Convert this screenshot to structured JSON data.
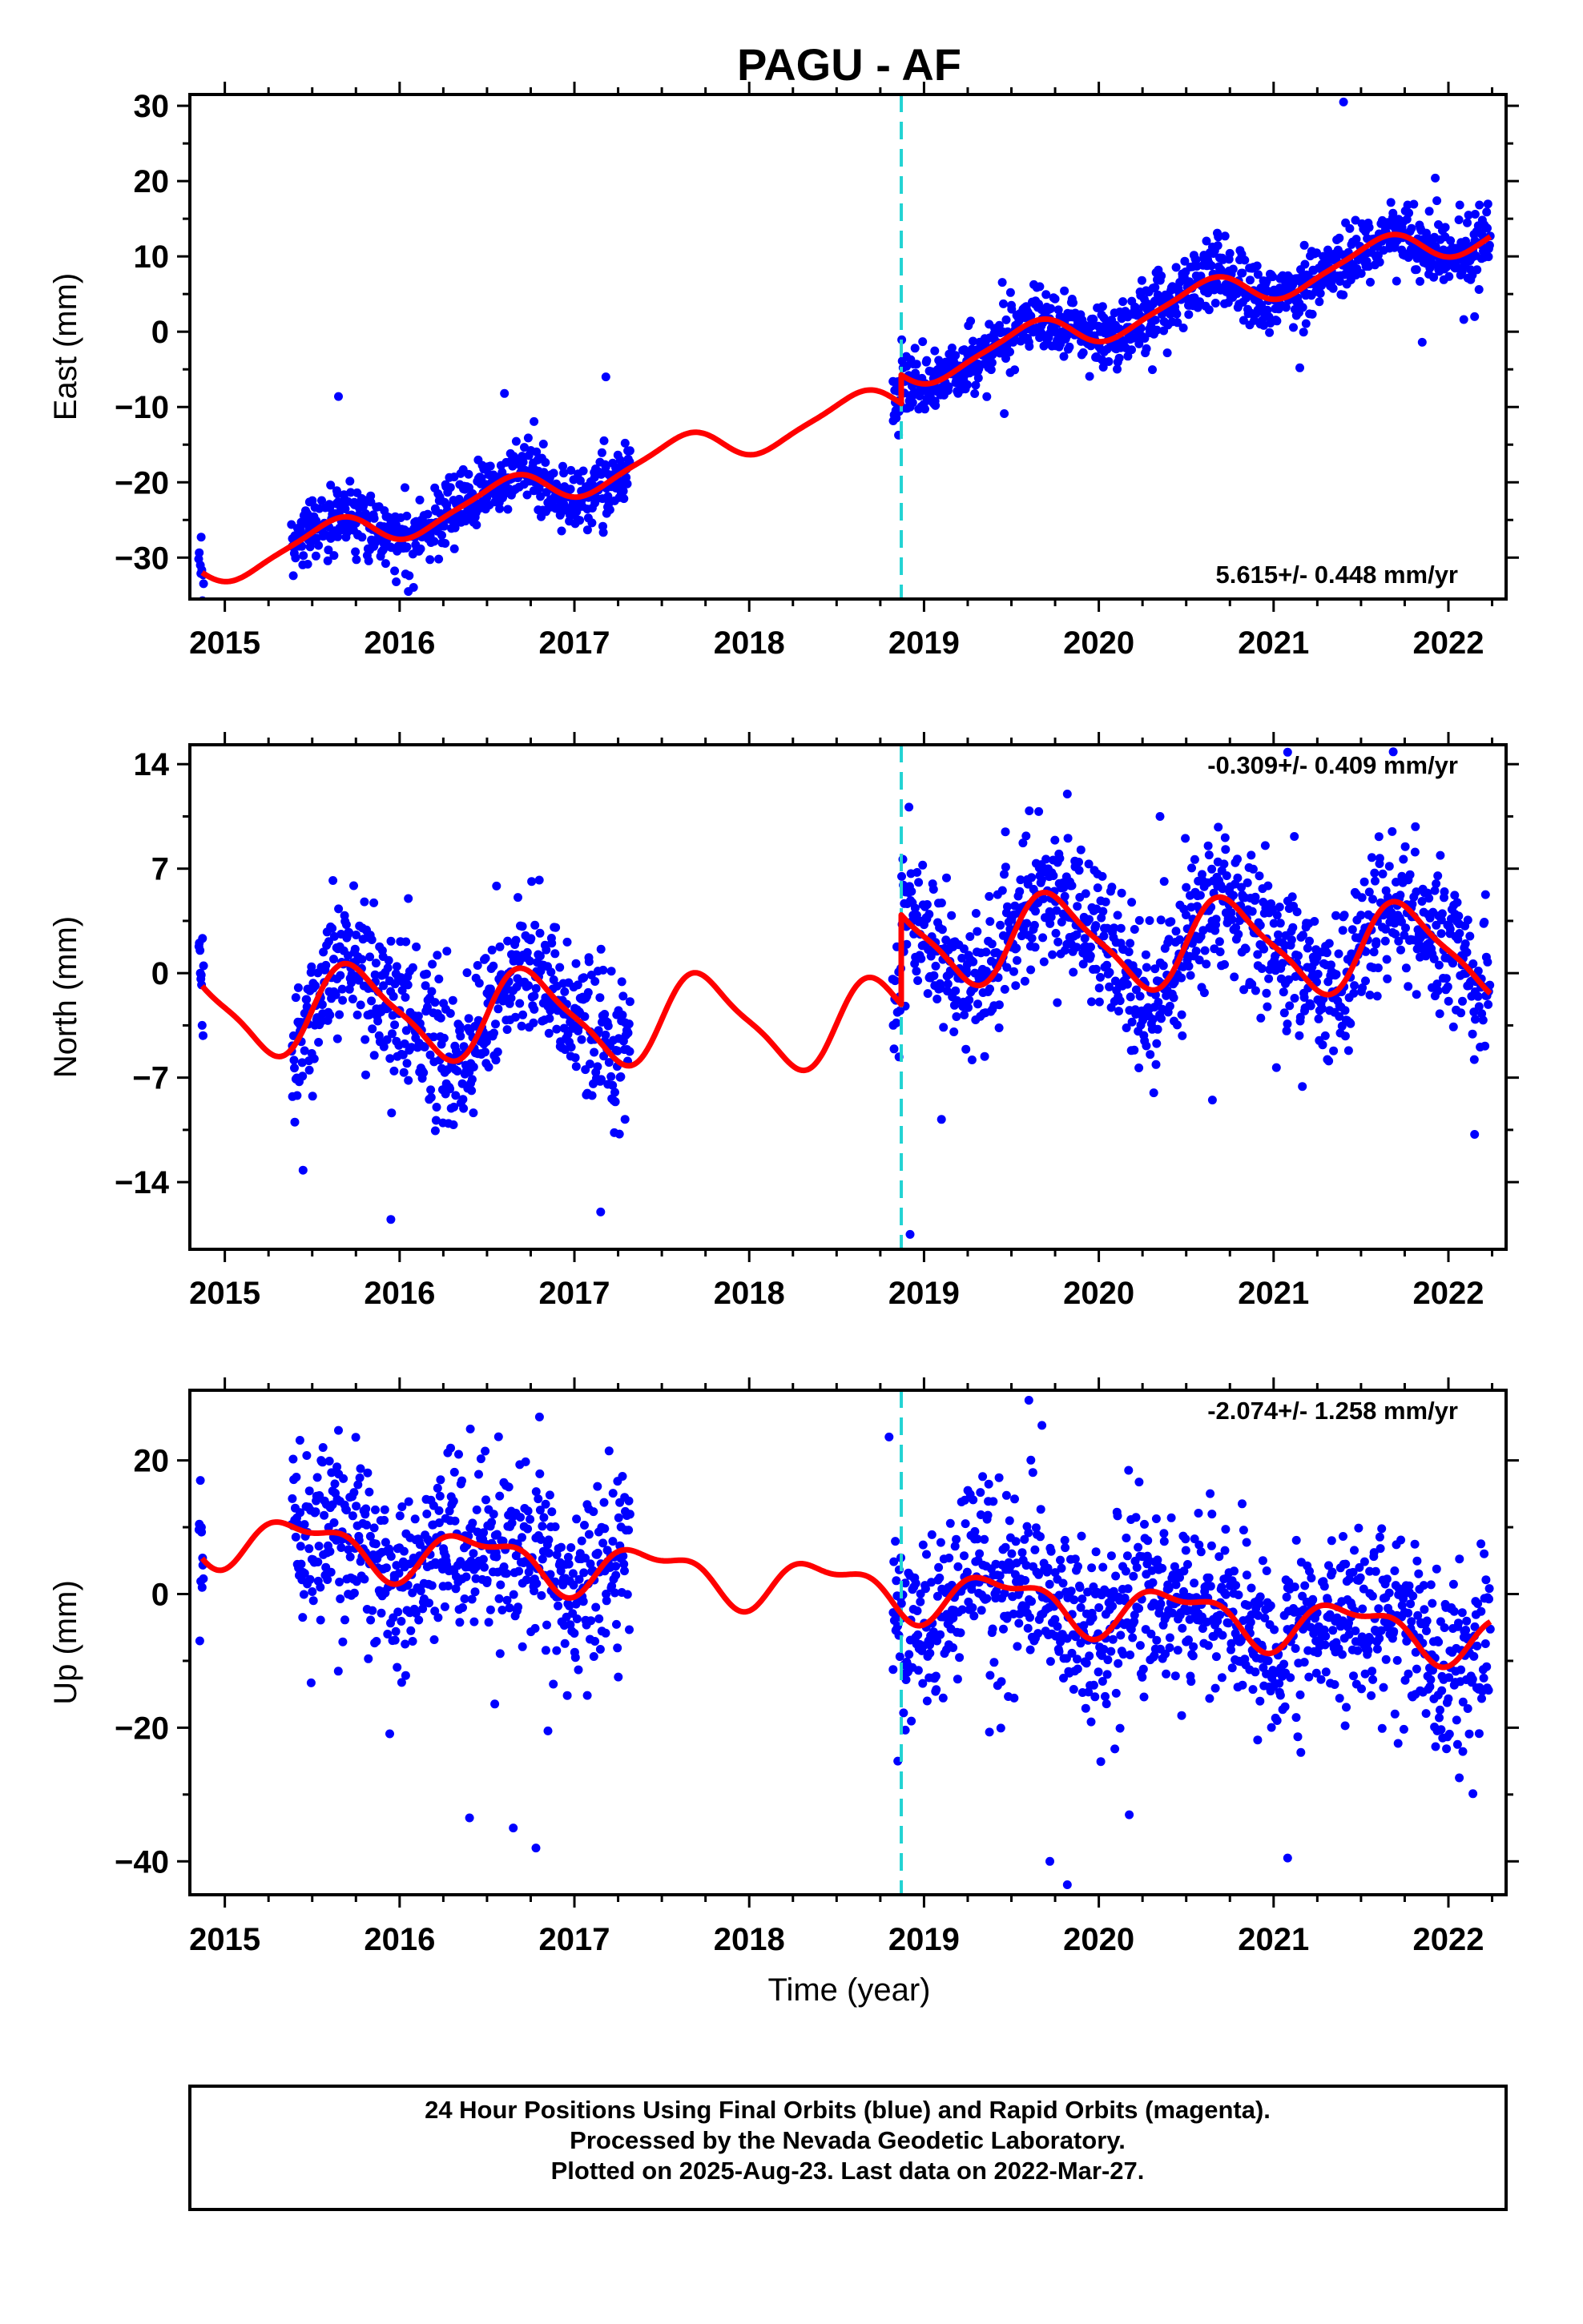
{
  "title": "PAGU - AF",
  "xlabel": "Time (year)",
  "footer": {
    "lines": [
      "24 Hour Positions Using Final Orbits (blue) and Rapid Orbits (magenta).",
      "Processed by the Nevada Geodetic Laboratory.",
      "Plotted on 2025-Aug-23. Last data on 2022-Mar-27."
    ]
  },
  "colors": {
    "points": "#0000ff",
    "model": "#ff0000",
    "step_line": "#22d3d3",
    "axis": "#000000"
  },
  "chart_data": [
    {
      "type": "scatter",
      "name": "east",
      "ylabel": "East (mm)",
      "rate_label": "5.615+/- 0.448 mm/yr",
      "rate_position": "bottom-right",
      "xlim": [
        2014.8,
        2022.33
      ],
      "ylim": [
        -35.5,
        31.5
      ],
      "x_ticks": [
        "2015",
        "2016",
        "2017",
        "2018",
        "2019",
        "2020",
        "2021",
        "2022"
      ],
      "y_ticks": [
        30,
        20,
        10,
        0,
        -10,
        -20,
        -30
      ],
      "step_epoch": 2018.87,
      "model": {
        "slope": 5.615,
        "ref_year": 2018.5,
        "offset": -11.2,
        "step": 3.8,
        "annual_amp": 2.3,
        "annual_phase_year": 0.35,
        "semiannual_amp": 0.5,
        "semiannual_phase_year": 0.1
      },
      "segments": [
        [
          2014.85,
          2014.88
        ],
        [
          2015.38,
          2017.32
        ],
        [
          2018.82,
          2022.24
        ]
      ],
      "noise_sd": 2.2,
      "points_per_year": 310,
      "outliers": [
        [
          2014.86,
          -31
        ],
        [
          2015.65,
          -8.6
        ],
        [
          2016.05,
          -34.5
        ],
        [
          2016.6,
          -8.2
        ],
        [
          2017.18,
          -6
        ],
        [
          2021.4,
          30.5
        ],
        [
          2021.15,
          -4.8
        ],
        [
          2021.85,
          -1.4
        ],
        [
          2022.15,
          2
        ]
      ]
    },
    {
      "type": "scatter",
      "name": "north",
      "ylabel": "North (mm)",
      "rate_label": "-0.309+/- 0.409 mm/yr",
      "rate_position": "top-right",
      "xlim": [
        2014.8,
        2022.33
      ],
      "ylim": [
        -18.5,
        15.3
      ],
      "x_ticks": [
        "2015",
        "2016",
        "2017",
        "2018",
        "2019",
        "2020",
        "2021",
        "2022"
      ],
      "y_ticks": [
        14,
        7,
        0,
        -7,
        -14
      ],
      "step_epoch": 2018.87,
      "model": {
        "slope": -0.309,
        "ref_year": 2018.5,
        "offset": -3.4,
        "step": 6.0,
        "annual_amp": 2.9,
        "annual_phase_year": 0.5,
        "semiannual_amp": 0.7,
        "semiannual_phase_year": 0.0
      },
      "segments": [
        [
          2014.85,
          2014.88
        ],
        [
          2015.38,
          2017.32
        ],
        [
          2018.82,
          2022.24
        ]
      ],
      "noise_sd": 2.4,
      "points_per_year": 300,
      "outliers": [
        [
          2014.86,
          0
        ],
        [
          2014.87,
          -3.5
        ],
        [
          2016.05,
          5
        ],
        [
          2015.95,
          -16.5
        ],
        [
          2017.15,
          -16
        ],
        [
          2018.92,
          -17.5
        ],
        [
          2019.82,
          12
        ],
        [
          2020.35,
          10.5
        ],
        [
          2021.08,
          14.8
        ],
        [
          2022.15,
          -10.8
        ],
        [
          2019.1,
          -9.8
        ],
        [
          2020.65,
          -8.5
        ]
      ]
    },
    {
      "type": "scatter",
      "name": "up",
      "ylabel": "Up (mm)",
      "rate_label": "-2.074+/- 1.258 mm/yr",
      "rate_position": "top-right",
      "xlim": [
        2014.8,
        2022.33
      ],
      "ylim": [
        -45,
        30.5
      ],
      "x_ticks": [
        "2015",
        "2016",
        "2017",
        "2018",
        "2019",
        "2020",
        "2021",
        "2022"
      ],
      "y_ticks": [
        20,
        0,
        -20,
        -40
      ],
      "step_epoch": 2018.87,
      "model": {
        "slope": -2.074,
        "ref_year": 2018.5,
        "offset": 1.2,
        "step": 0,
        "annual_amp": 3.4,
        "annual_phase_year": 0.2,
        "semiannual_amp": 1.6,
        "semiannual_phase_year": 0.1
      },
      "segments": [
        [
          2014.85,
          2014.88
        ],
        [
          2015.38,
          2017.32
        ],
        [
          2018.82,
          2022.24
        ]
      ],
      "noise_sd": 6.5,
      "points_per_year": 300,
      "outliers": [
        [
          2014.86,
          17
        ],
        [
          2014.87,
          1
        ],
        [
          2015.65,
          24.5
        ],
        [
          2016.4,
          -33.5
        ],
        [
          2016.65,
          -35
        ],
        [
          2016.78,
          -38
        ],
        [
          2016.8,
          26.5
        ],
        [
          2019.6,
          29
        ],
        [
          2019.72,
          -40
        ],
        [
          2019.82,
          -43.5
        ],
        [
          2021.08,
          -39.5
        ],
        [
          2018.8,
          23.5
        ],
        [
          2018.85,
          -25
        ]
      ]
    }
  ]
}
